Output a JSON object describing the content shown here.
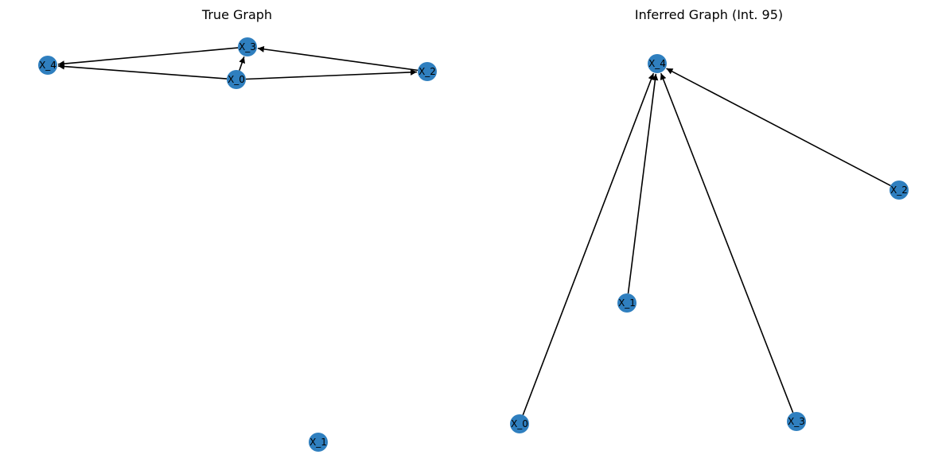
{
  "colors": {
    "node_fill": "#2f7fbf",
    "edge": "#000000",
    "background": "#ffffff"
  },
  "panels": [
    {
      "id": "true",
      "title": "True Graph",
      "nodes": [
        "X_4",
        "X_3",
        "X_0",
        "X_2",
        "X_1"
      ],
      "edges": [
        {
          "from": "X_3",
          "to": "X_4"
        },
        {
          "from": "X_0",
          "to": "X_4"
        },
        {
          "from": "X_0",
          "to": "X_3"
        },
        {
          "from": "X_2",
          "to": "X_3"
        },
        {
          "from": "X_0",
          "to": "X_2"
        }
      ]
    },
    {
      "id": "inferred",
      "title": "Inferred Graph (Int. 95)",
      "nodes": [
        "X_4",
        "X_2",
        "X_1",
        "X_0",
        "X_3"
      ],
      "edges": [
        {
          "from": "X_0",
          "to": "X_4"
        },
        {
          "from": "X_1",
          "to": "X_4"
        },
        {
          "from": "X_3",
          "to": "X_4"
        },
        {
          "from": "X_2",
          "to": "X_4"
        }
      ]
    }
  ]
}
